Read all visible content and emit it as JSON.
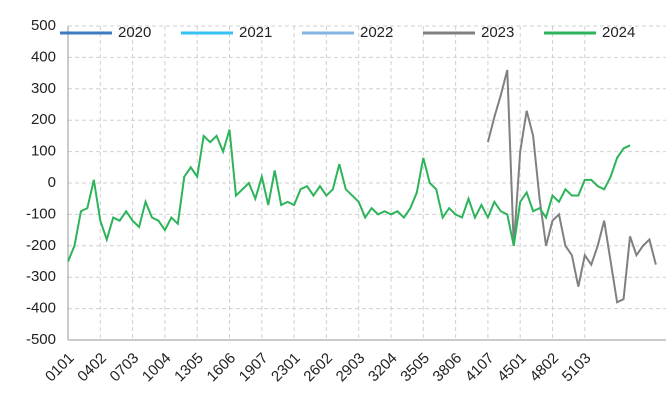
{
  "chart_data": {
    "type": "line",
    "categories": [
      "0101",
      null,
      null,
      null,
      null,
      "0402",
      null,
      null,
      null,
      null,
      "0703",
      null,
      null,
      null,
      null,
      "1004",
      null,
      null,
      null,
      null,
      "1305",
      null,
      null,
      null,
      null,
      "1606",
      null,
      null,
      null,
      null,
      "1907",
      null,
      null,
      null,
      null,
      "2301",
      null,
      null,
      null,
      null,
      "2602",
      null,
      null,
      null,
      null,
      "2903",
      null,
      null,
      null,
      null,
      "3204",
      null,
      null,
      null,
      null,
      "3505",
      null,
      null,
      null,
      null,
      "3806",
      null,
      null,
      null,
      null,
      "4107",
      null,
      null,
      null,
      null,
      "4501",
      null,
      null,
      null,
      null,
      "4802",
      null,
      null,
      null,
      null,
      "5103",
      null,
      null,
      null,
      null,
      null,
      null,
      null,
      null,
      null,
      null,
      null
    ],
    "series": [
      {
        "name": "2020",
        "color": "#3d7cc0",
        "values": [
          null,
          null,
          null,
          null,
          null,
          null,
          null,
          null,
          null,
          null,
          null,
          null,
          null,
          null,
          null,
          null,
          null,
          null,
          null,
          null,
          null,
          null,
          null,
          null,
          null,
          null,
          null,
          null,
          null,
          null,
          null,
          null,
          null,
          null,
          null,
          null,
          null,
          null,
          null,
          null,
          null,
          null,
          null,
          null,
          null,
          null,
          null,
          null,
          null,
          null,
          null,
          null,
          null,
          null,
          null,
          null,
          null,
          null,
          null,
          null,
          null,
          null,
          null,
          null,
          null,
          null,
          null,
          null,
          null,
          null,
          null,
          null,
          null,
          null,
          null,
          null,
          null,
          null,
          null,
          null,
          null,
          null,
          null,
          null,
          null,
          null,
          null,
          null,
          null,
          null,
          null,
          null
        ]
      },
      {
        "name": "2021",
        "color": "#36c2f0",
        "values": [
          null,
          null,
          null,
          null,
          null,
          null,
          null,
          null,
          null,
          null,
          null,
          null,
          null,
          null,
          null,
          null,
          null,
          null,
          null,
          null,
          null,
          null,
          null,
          null,
          null,
          null,
          null,
          null,
          null,
          null,
          null,
          null,
          null,
          null,
          null,
          null,
          null,
          null,
          null,
          null,
          null,
          null,
          null,
          null,
          null,
          null,
          null,
          null,
          null,
          null,
          null,
          null,
          null,
          null,
          null,
          null,
          null,
          null,
          null,
          null,
          null,
          null,
          null,
          null,
          null,
          null,
          null,
          null,
          null,
          null,
          null,
          null,
          null,
          null,
          null,
          null,
          null,
          null,
          null,
          null,
          null,
          null,
          null,
          null,
          null,
          null,
          null,
          null,
          null,
          null,
          null,
          null
        ]
      },
      {
        "name": "2022",
        "color": "#86b4e2",
        "values": [
          null,
          null,
          null,
          null,
          null,
          null,
          null,
          null,
          null,
          null,
          null,
          null,
          null,
          null,
          null,
          null,
          null,
          null,
          null,
          null,
          null,
          null,
          null,
          null,
          null,
          null,
          null,
          null,
          null,
          null,
          null,
          null,
          null,
          null,
          null,
          null,
          null,
          null,
          null,
          null,
          null,
          null,
          null,
          null,
          null,
          null,
          null,
          null,
          null,
          null,
          null,
          null,
          null,
          null,
          null,
          null,
          null,
          null,
          null,
          null,
          null,
          null,
          null,
          null,
          null,
          null,
          null,
          null,
          null,
          null,
          null,
          null,
          null,
          null,
          null,
          null,
          null,
          null,
          null,
          null,
          null,
          null,
          null,
          null,
          null,
          null,
          null,
          null,
          null,
          null,
          null,
          null
        ]
      },
      {
        "name": "2023",
        "color": "#808080",
        "values": [
          null,
          null,
          null,
          null,
          null,
          null,
          null,
          null,
          null,
          null,
          null,
          null,
          null,
          null,
          null,
          null,
          null,
          null,
          null,
          null,
          null,
          null,
          null,
          null,
          null,
          null,
          null,
          null,
          null,
          null,
          null,
          null,
          null,
          null,
          null,
          null,
          null,
          null,
          null,
          null,
          null,
          null,
          null,
          null,
          null,
          null,
          null,
          null,
          null,
          null,
          null,
          null,
          null,
          null,
          null,
          null,
          null,
          null,
          null,
          null,
          null,
          null,
          null,
          null,
          null,
          130,
          210,
          280,
          360,
          -200,
          100,
          230,
          150,
          -50,
          -200,
          -120,
          -100,
          -200,
          -230,
          -330,
          -230,
          -260,
          -200,
          -120,
          -250,
          -380,
          -370,
          -170,
          -230,
          -200,
          -180,
          -260
        ]
      },
      {
        "name": "2024",
        "color": "#2db45a",
        "values": [
          -250,
          -200,
          -90,
          -80,
          10,
          -120,
          -180,
          -110,
          -120,
          -90,
          -120,
          -140,
          -60,
          -110,
          -120,
          -150,
          -110,
          -130,
          20,
          50,
          20,
          150,
          130,
          150,
          100,
          170,
          -40,
          -20,
          0,
          -50,
          20,
          -70,
          40,
          -70,
          -60,
          -70,
          -20,
          -10,
          -40,
          -10,
          -40,
          -20,
          60,
          -20,
          -40,
          -60,
          -110,
          -80,
          -100,
          -90,
          -100,
          -90,
          -110,
          -80,
          -30,
          80,
          0,
          -20,
          -110,
          -80,
          -100,
          -110,
          -50,
          -110,
          -70,
          -110,
          -60,
          -90,
          -100,
          -200,
          -60,
          -30,
          -90,
          -80,
          -110,
          -40,
          -60,
          -20,
          -40,
          -40,
          10,
          10,
          -10,
          -20,
          20,
          80,
          110,
          120,
          null,
          null,
          null,
          null
        ]
      }
    ],
    "ylim": [
      -500,
      500
    ],
    "yticks": [
      -500,
      -400,
      -300,
      -200,
      -100,
      0,
      100,
      200,
      300,
      400,
      500
    ],
    "grid": true,
    "legend": "top"
  }
}
